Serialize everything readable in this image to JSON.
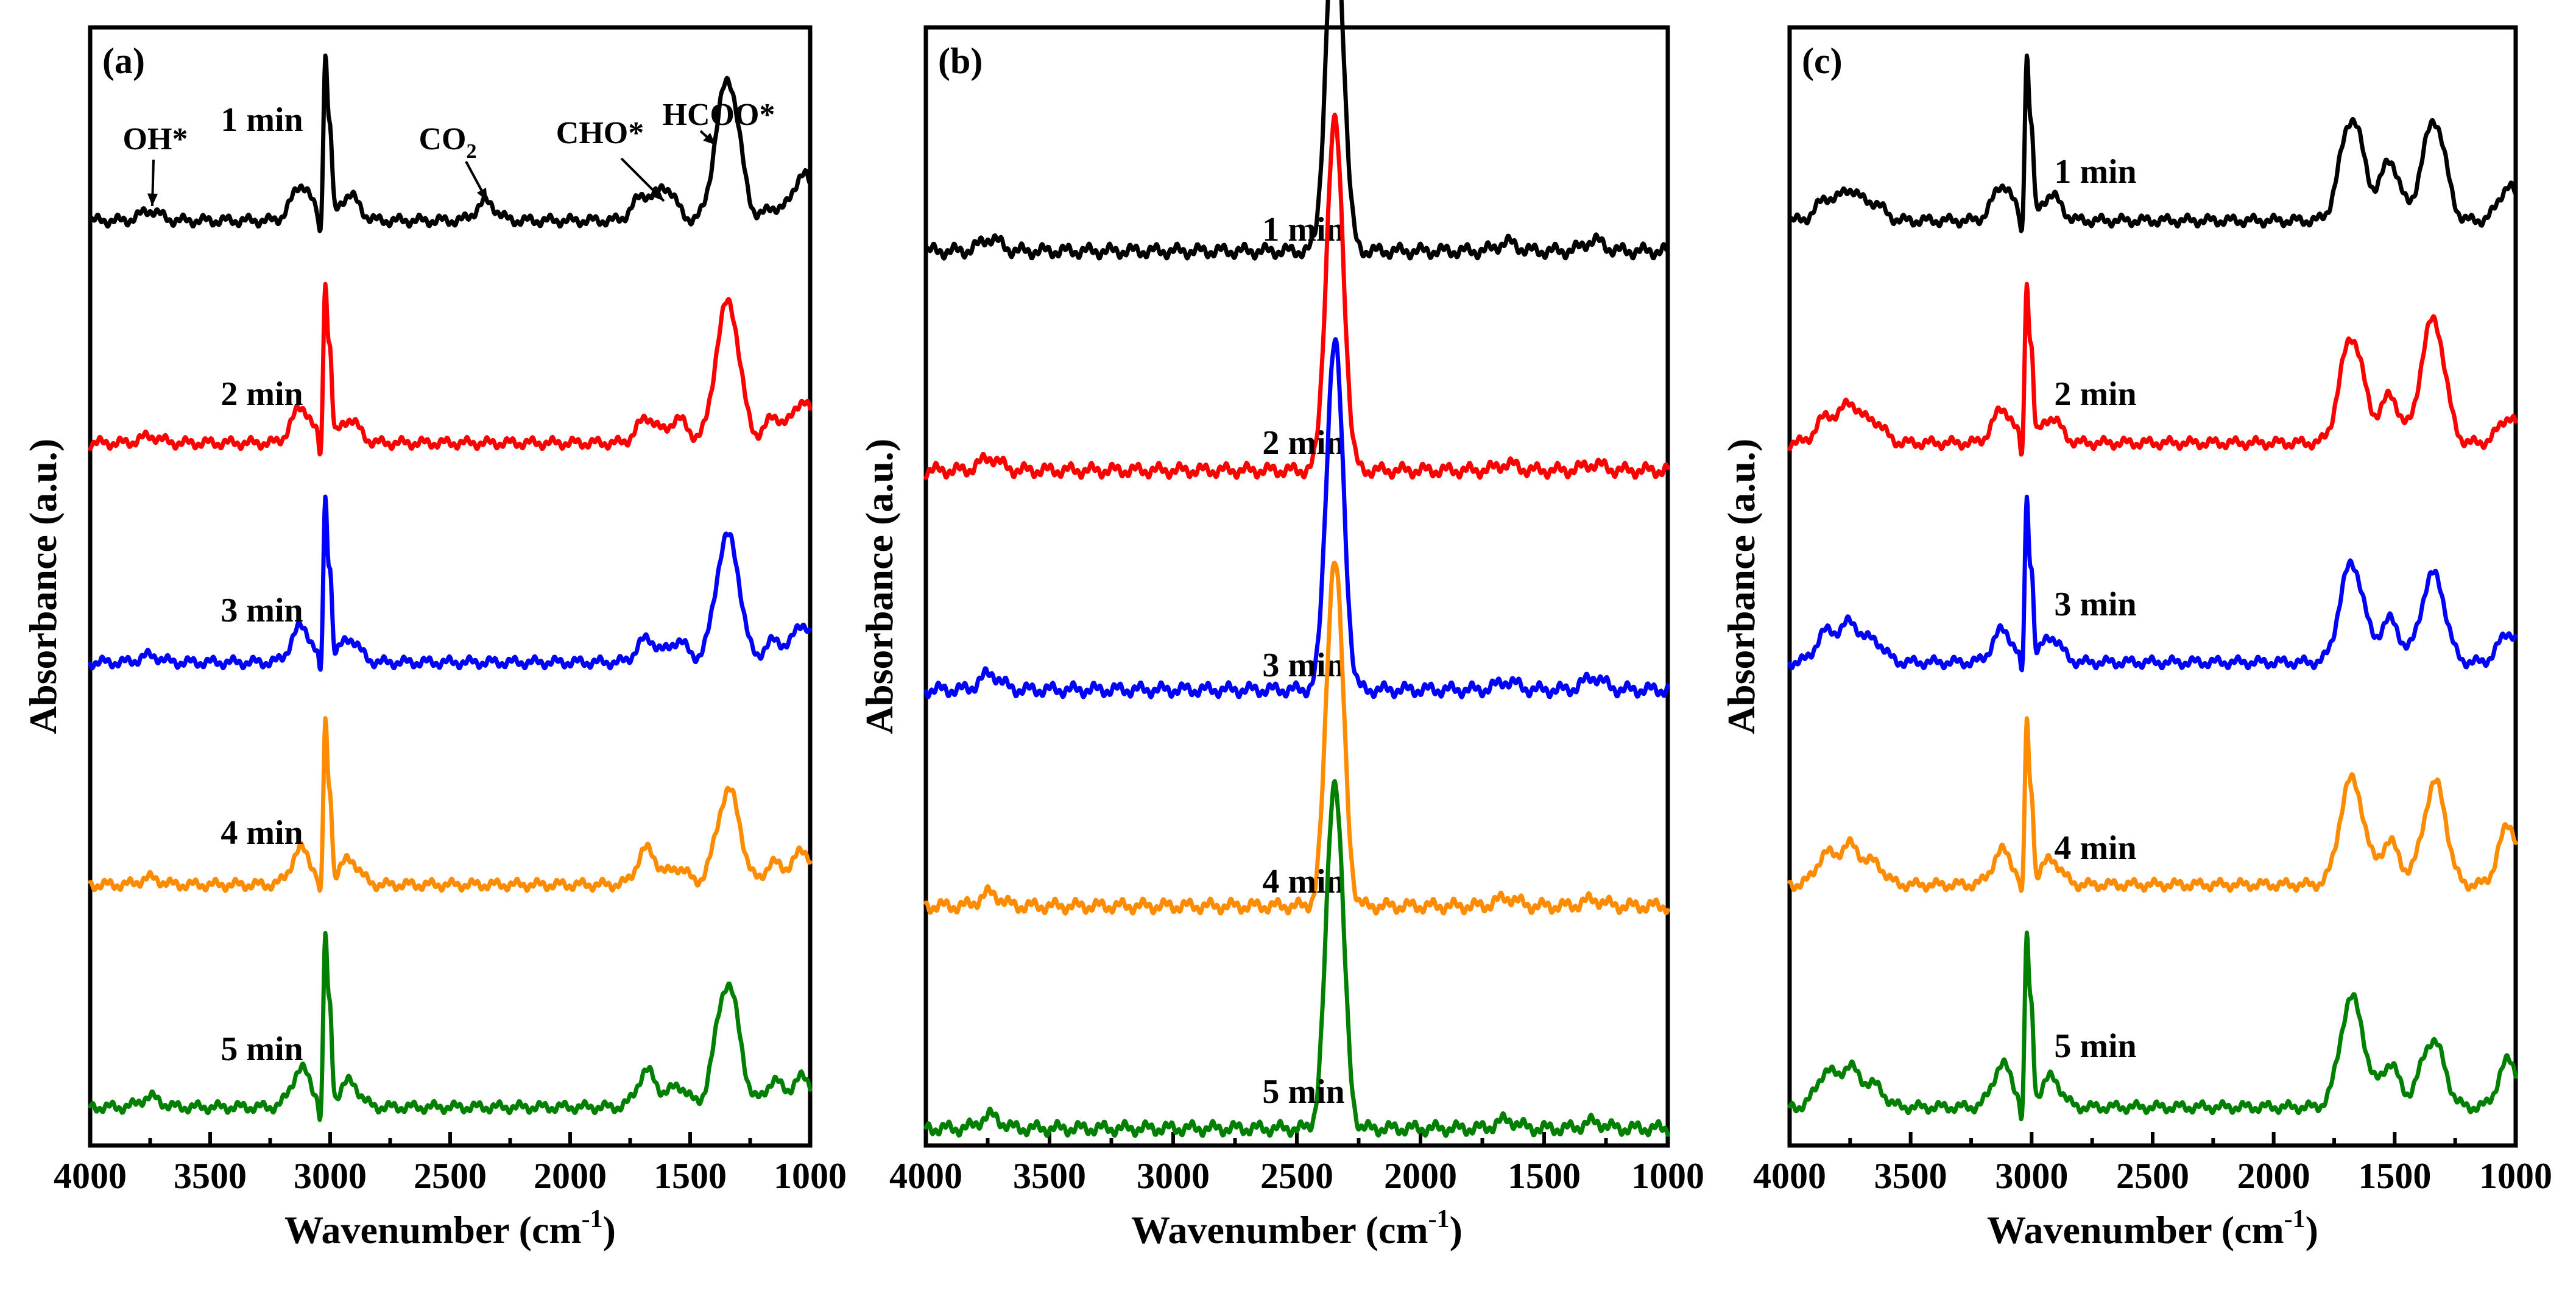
{
  "chart_data": [
    {
      "type": "line",
      "panel_label": "(a)",
      "xlabel": "Wavenumber (cm",
      "xlabel_sup": "-1",
      "xlabel_suffix": ")",
      "ylabel": "Absorbance (a.u.)",
      "xlim": [
        4000,
        1000
      ],
      "xticks": [
        4000,
        3500,
        3000,
        2500,
        2000,
        1500,
        1000
      ],
      "tick_labels": [
        "4000",
        "3500",
        "3000",
        "2500",
        "2000",
        "1500",
        "1000"
      ],
      "series": [
        {
          "name": "1 min",
          "color": "#000000",
          "peaks": [
            [
              3750,
              0.12
            ],
            [
              3120,
              0.42
            ],
            [
              3020,
              1.9
            ],
            [
              3000,
              1.0
            ],
            [
              2920,
              0.3
            ],
            [
              2350,
              0.22
            ],
            [
              1700,
              0.28
            ],
            [
              1600,
              0.38
            ],
            [
              1370,
              0.95
            ],
            [
              1320,
              1.05
            ],
            [
              1150,
              0.15
            ],
            [
              1030,
              0.55
            ]
          ]
        },
        {
          "name": "2 min",
          "color": "#ff0000",
          "peaks": [
            [
              3750,
              0.08
            ],
            [
              3120,
              0.42
            ],
            [
              3020,
              1.85
            ],
            [
              3000,
              1.0
            ],
            [
              2920,
              0.28
            ],
            [
              1680,
              0.3
            ],
            [
              1550,
              0.28
            ],
            [
              1370,
              0.95
            ],
            [
              1320,
              1.05
            ],
            [
              1150,
              0.3
            ],
            [
              1030,
              0.5
            ]
          ]
        },
        {
          "name": "3 min",
          "color": "#0000ff",
          "peaks": [
            [
              3750,
              0.08
            ],
            [
              3120,
              0.42
            ],
            [
              3020,
              1.85
            ],
            [
              3000,
              1.0
            ],
            [
              2920,
              0.28
            ],
            [
              1680,
              0.28
            ],
            [
              1550,
              0.25
            ],
            [
              1370,
              0.85
            ],
            [
              1320,
              0.95
            ],
            [
              1150,
              0.25
            ],
            [
              1030,
              0.45
            ]
          ]
        },
        {
          "name": "4 min",
          "color": "#ff8c00",
          "peaks": [
            [
              3750,
              0.08
            ],
            [
              3120,
              0.42
            ],
            [
              3020,
              1.85
            ],
            [
              3000,
              1.0
            ],
            [
              2920,
              0.3
            ],
            [
              1680,
              0.42
            ],
            [
              1550,
              0.2
            ],
            [
              1370,
              0.55
            ],
            [
              1320,
              0.78
            ],
            [
              1150,
              0.25
            ],
            [
              1030,
              0.4
            ]
          ]
        },
        {
          "name": "5 min",
          "color": "#008000",
          "peaks": [
            [
              3750,
              0.12
            ],
            [
              3120,
              0.45
            ],
            [
              3020,
              1.95
            ],
            [
              3000,
              1.05
            ],
            [
              2920,
              0.3
            ],
            [
              1680,
              0.42
            ],
            [
              1550,
              0.25
            ],
            [
              1370,
              0.85
            ],
            [
              1320,
              0.9
            ],
            [
              1150,
              0.3
            ],
            [
              1030,
              0.35
            ]
          ]
        }
      ],
      "annotations": [
        {
          "text": "OH*",
          "at": 3750
        },
        {
          "text": "CO",
          "sub": "2",
          "at": 2350
        },
        {
          "text": "CHO*",
          "at": 1700
        },
        {
          "text": "HCOO*",
          "at": 1370
        }
      ]
    },
    {
      "type": "line",
      "panel_label": "(b)",
      "xlabel": "Wavenumber (cm",
      "xlabel_sup": "-1",
      "xlabel_suffix": ")",
      "ylabel": "Absorbance (a.u.)",
      "xlim": [
        4000,
        1000
      ],
      "xticks": [
        4000,
        3500,
        3000,
        2500,
        2000,
        1500,
        1000
      ],
      "tick_labels": [
        "4000",
        "3500",
        "3000",
        "2500",
        "2000",
        "1500",
        "1000"
      ],
      "series": [
        {
          "name": "1 min",
          "color": "#000000",
          "peaks": [
            [
              3740,
              0.12
            ],
            [
              2360,
              2.0
            ],
            [
              2330,
              1.7
            ],
            [
              1650,
              0.08
            ],
            [
              1300,
              0.1
            ]
          ]
        },
        {
          "name": "2 min",
          "color": "#ff0000",
          "peaks": [
            [
              3740,
              0.12
            ],
            [
              2360,
              2.0
            ],
            [
              2330,
              1.7
            ],
            [
              1650,
              0.06
            ],
            [
              1300,
              0.06
            ]
          ]
        },
        {
          "name": "3 min",
          "color": "#0000ff",
          "peaks": [
            [
              3740,
              0.15
            ],
            [
              2360,
              2.0
            ],
            [
              2330,
              1.7
            ],
            [
              1650,
              0.08
            ],
            [
              1300,
              0.12
            ]
          ]
        },
        {
          "name": "4 min",
          "color": "#ff8c00",
          "peaks": [
            [
              3740,
              0.12
            ],
            [
              2360,
              2.0
            ],
            [
              2330,
              1.7
            ],
            [
              1650,
              0.08
            ],
            [
              1300,
              0.06
            ]
          ]
        },
        {
          "name": "5 min",
          "color": "#008000",
          "peaks": [
            [
              3740,
              0.12
            ],
            [
              2360,
              2.0
            ],
            [
              2330,
              1.7
            ],
            [
              1650,
              0.08
            ],
            [
              1300,
              0.06
            ]
          ]
        }
      ],
      "annotations": []
    },
    {
      "type": "line",
      "panel_label": "(c)",
      "xlabel": "Wavenumber (cm",
      "xlabel_sup": "-1",
      "xlabel_suffix": ")",
      "ylabel": "Absorbance (a.u.)",
      "xlim": [
        4000,
        1000
      ],
      "xticks": [
        4000,
        3500,
        3000,
        2500,
        2000,
        1500,
        1000
      ],
      "tick_labels": [
        "4000",
        "3500",
        "3000",
        "2500",
        "2000",
        "1500",
        "1000"
      ],
      "series": [
        {
          "name": "1 min",
          "color": "#000000",
          "peaks": [
            [
              3850,
              0.25
            ],
            [
              3750,
              0.35
            ],
            [
              3650,
              0.2
            ],
            [
              3120,
              0.42
            ],
            [
              3020,
              1.9
            ],
            [
              3000,
              1.0
            ],
            [
              2920,
              0.3
            ],
            [
              1700,
              0.75
            ],
            [
              1650,
              0.7
            ],
            [
              1520,
              0.7
            ],
            [
              1370,
              0.55
            ],
            [
              1320,
              0.85
            ],
            [
              1030,
              0.4
            ]
          ]
        },
        {
          "name": "2 min",
          "color": "#ff0000",
          "peaks": [
            [
              3850,
              0.3
            ],
            [
              3750,
              0.45
            ],
            [
              3650,
              0.25
            ],
            [
              3120,
              0.4
            ],
            [
              3020,
              1.85
            ],
            [
              3000,
              1.0
            ],
            [
              2920,
              0.3
            ],
            [
              1700,
              0.8
            ],
            [
              1650,
              0.7
            ],
            [
              1520,
              0.55
            ],
            [
              1370,
              0.8
            ],
            [
              1320,
              0.95
            ],
            [
              1030,
              0.3
            ]
          ]
        },
        {
          "name": "3 min",
          "color": "#0000ff",
          "peaks": [
            [
              3850,
              0.35
            ],
            [
              3750,
              0.45
            ],
            [
              3650,
              0.25
            ],
            [
              3120,
              0.38
            ],
            [
              3020,
              1.85
            ],
            [
              3000,
              1.0
            ],
            [
              2920,
              0.3
            ],
            [
              1700,
              0.75
            ],
            [
              1650,
              0.65
            ],
            [
              1520,
              0.5
            ],
            [
              1370,
              0.55
            ],
            [
              1320,
              0.7
            ],
            [
              1030,
              0.35
            ]
          ]
        },
        {
          "name": "4 min",
          "color": "#ff8c00",
          "peaks": [
            [
              3850,
              0.35
            ],
            [
              3750,
              0.45
            ],
            [
              3650,
              0.25
            ],
            [
              3120,
              0.4
            ],
            [
              3020,
              1.85
            ],
            [
              3000,
              1.0
            ],
            [
              2920,
              0.3
            ],
            [
              1700,
              0.8
            ],
            [
              1650,
              0.7
            ],
            [
              1520,
              0.5
            ],
            [
              1370,
              0.45
            ],
            [
              1320,
              0.95
            ],
            [
              1030,
              0.7
            ]
          ]
        },
        {
          "name": "5 min",
          "color": "#008000",
          "peaks": [
            [
              3850,
              0.4
            ],
            [
              3750,
              0.45
            ],
            [
              3650,
              0.25
            ],
            [
              3120,
              0.5
            ],
            [
              3020,
              1.95
            ],
            [
              3000,
              1.05
            ],
            [
              2920,
              0.35
            ],
            [
              1700,
              0.8
            ],
            [
              1650,
              0.75
            ],
            [
              1520,
              0.5
            ],
            [
              1370,
              0.45
            ],
            [
              1320,
              0.5
            ],
            [
              1030,
              0.55
            ]
          ]
        }
      ],
      "annotations": []
    }
  ]
}
